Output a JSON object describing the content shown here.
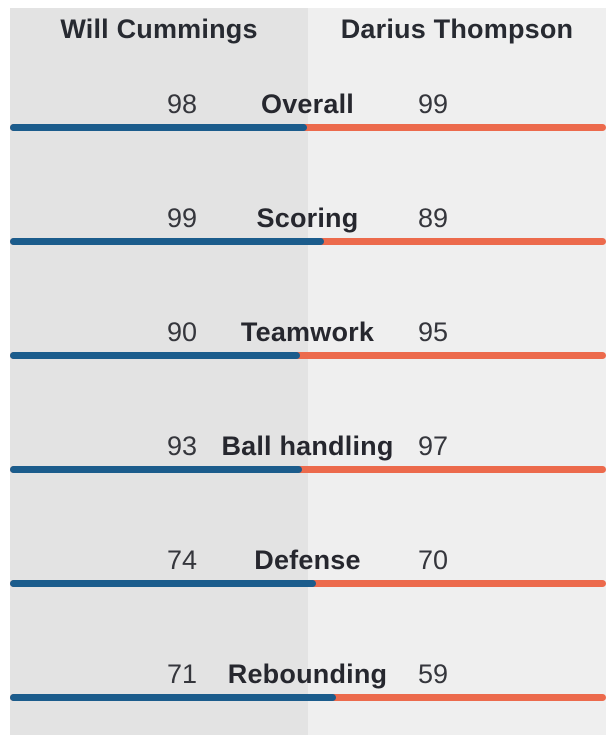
{
  "chart_data": {
    "type": "bar",
    "layout": "paired horizontal tug-of-war comparison; category label centered, player values flanking it, split bar underneath",
    "legend_position": "top (player names as column headers)",
    "categories": [
      "Overall",
      "Scoring",
      "Teamwork",
      "Ball handling",
      "Defense",
      "Rebounding"
    ],
    "series": [
      {
        "name": "Will Cummings",
        "color": "#1b5c8c",
        "values": [
          98,
          99,
          90,
          93,
          74,
          71
        ]
      },
      {
        "name": "Darius Thompson",
        "color": "#ec6a4c",
        "values": [
          99,
          89,
          95,
          97,
          70,
          59
        ]
      }
    ],
    "value_range": [
      0,
      100
    ],
    "grid": false,
    "bar_rule": "left (blue) segment width = left_value / (left_value + right_value) of full row width; remainder is right (orange) segment"
  }
}
